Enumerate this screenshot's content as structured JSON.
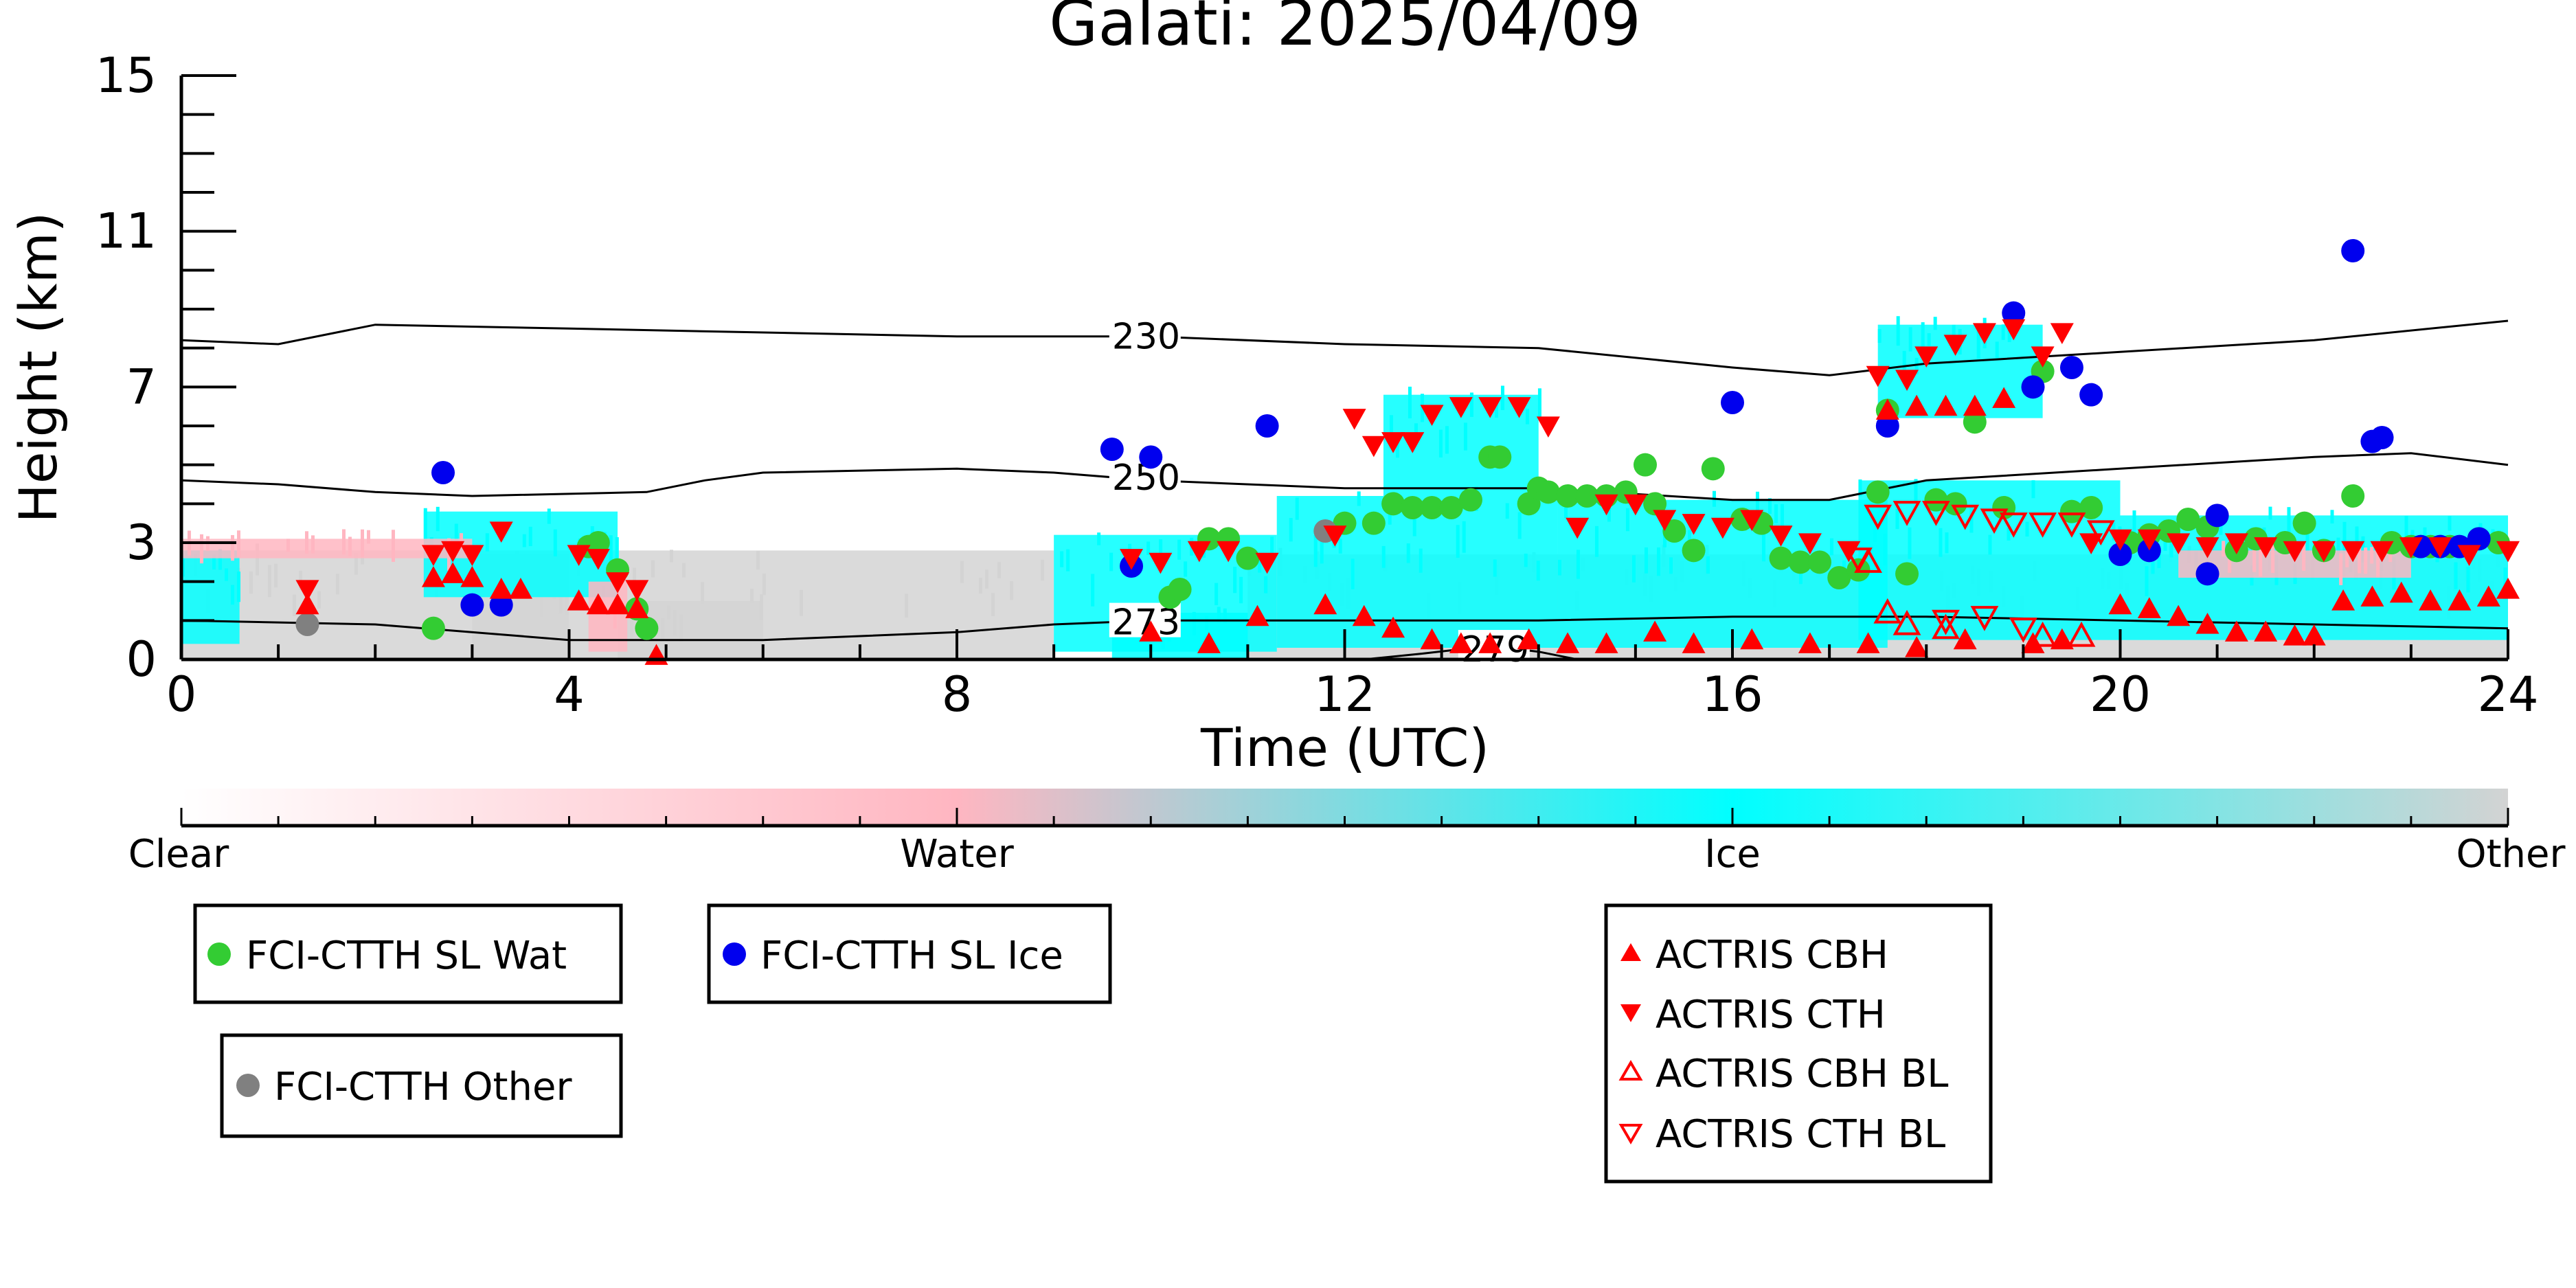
{
  "chart_data": {
    "type": "scatter",
    "title": "Galati: 2025/04/09",
    "xlabel": "Time (UTC)",
    "ylabel": "Height (km)",
    "xlim": [
      0,
      24
    ],
    "ylim": [
      0,
      15
    ],
    "x_ticks": [
      0,
      4,
      8,
      12,
      16,
      20,
      24
    ],
    "y_ticks": [
      0,
      3,
      7,
      11,
      15
    ],
    "grid": false,
    "colorbar": {
      "labels": [
        "Clear",
        "Water",
        "Ice",
        "Other"
      ],
      "colors": [
        "#ffffff",
        "#ffb6c1",
        "#00ffff",
        "#d3d3d3"
      ]
    },
    "colors": {
      "wat": "#33cc33",
      "ice": "#0000ee",
      "other": "#808080",
      "actris": "#ff0000",
      "cloud_ice": "#00ffff",
      "cloud_other": "#d3d3d3",
      "cloud_water": "#ffb6c1"
    },
    "isotherms": [
      {
        "label": "230",
        "label_x": 9.6,
        "points": [
          [
            0,
            8.2
          ],
          [
            1,
            8.1
          ],
          [
            2,
            8.6
          ],
          [
            4,
            8.5
          ],
          [
            8,
            8.3
          ],
          [
            10,
            8.3
          ],
          [
            12,
            8.1
          ],
          [
            14,
            8.0
          ],
          [
            16,
            7.5
          ],
          [
            17,
            7.3
          ],
          [
            18,
            7.6
          ],
          [
            20,
            7.9
          ],
          [
            22,
            8.2
          ],
          [
            24,
            8.7
          ]
        ]
      },
      {
        "label": "250",
        "label_x": 9.6,
        "points": [
          [
            0,
            4.6
          ],
          [
            1,
            4.5
          ],
          [
            2,
            4.3
          ],
          [
            3,
            4.2
          ],
          [
            4.8,
            4.3
          ],
          [
            5.4,
            4.6
          ],
          [
            6,
            4.8
          ],
          [
            8,
            4.9
          ],
          [
            9,
            4.8
          ],
          [
            10,
            4.6
          ],
          [
            12,
            4.4
          ],
          [
            14,
            4.4
          ],
          [
            16,
            4.1
          ],
          [
            17,
            4.1
          ],
          [
            18,
            4.6
          ],
          [
            20,
            4.9
          ],
          [
            22,
            5.2
          ],
          [
            23,
            5.3
          ],
          [
            24,
            5.0
          ]
        ]
      },
      {
        "label": "273",
        "label_x": 9.6,
        "points": [
          [
            0,
            1.0
          ],
          [
            2,
            0.9
          ],
          [
            4,
            0.5
          ],
          [
            6,
            0.5
          ],
          [
            8,
            0.7
          ],
          [
            9,
            0.9
          ],
          [
            10,
            1.0
          ],
          [
            12,
            1.0
          ],
          [
            14,
            1.0
          ],
          [
            16,
            1.1
          ],
          [
            18,
            1.1
          ],
          [
            20,
            1.0
          ],
          [
            22,
            0.9
          ],
          [
            24,
            0.8
          ]
        ]
      },
      {
        "label": "279",
        "label_x": 13.2,
        "points": [
          [
            12.2,
            0.0
          ],
          [
            12.8,
            0.15
          ],
          [
            13.5,
            0.35
          ],
          [
            14.0,
            0.2
          ],
          [
            14.4,
            0.0
          ]
        ]
      }
    ],
    "cloud_mask": {
      "other": [
        [
          0,
          0,
          9,
          2.8
        ],
        [
          11,
          0,
          24,
          2.7
        ],
        [
          4.5,
          0,
          6,
          1.5
        ],
        [
          3,
          0,
          4,
          2.7
        ]
      ],
      "ice": [
        [
          0,
          0.4,
          0.6,
          2.8
        ],
        [
          2.5,
          1.6,
          4.5,
          3.8
        ],
        [
          9,
          0.2,
          11.3,
          3.2
        ],
        [
          11.3,
          0.3,
          14.2,
          4.2
        ],
        [
          12.4,
          4.2,
          14.0,
          6.8
        ],
        [
          14.2,
          0.3,
          17.6,
          4.1
        ],
        [
          17.3,
          0.5,
          20,
          4.6
        ],
        [
          17.5,
          6.2,
          19.2,
          8.6
        ],
        [
          20,
          0.5,
          24,
          3.7
        ],
        [
          9.6,
          0.0,
          11,
          1.2
        ]
      ],
      "water": [
        [
          0,
          2.6,
          3,
          3.1
        ],
        [
          4.2,
          0.2,
          4.6,
          2.0
        ],
        [
          20.6,
          2.1,
          23,
          2.8
        ]
      ]
    },
    "series": [
      {
        "name": "FCI-CTTH SL Wat",
        "kind": "wat",
        "marker": "circle-filled",
        "points": [
          [
            2.6,
            0.8
          ],
          [
            4.2,
            2.9
          ],
          [
            4.3,
            3.0
          ],
          [
            4.5,
            2.3
          ],
          [
            4.7,
            1.3
          ],
          [
            4.8,
            0.8
          ],
          [
            10.2,
            1.6
          ],
          [
            10.3,
            1.8
          ],
          [
            10.6,
            3.1
          ],
          [
            10.8,
            3.1
          ],
          [
            11.0,
            2.6
          ],
          [
            12.0,
            3.5
          ],
          [
            12.3,
            3.5
          ],
          [
            12.5,
            4.0
          ],
          [
            12.7,
            3.9
          ],
          [
            12.9,
            3.9
          ],
          [
            13.1,
            3.9
          ],
          [
            13.3,
            4.1
          ],
          [
            13.5,
            5.2
          ],
          [
            13.6,
            5.2
          ],
          [
            13.9,
            4.0
          ],
          [
            14.0,
            4.4
          ],
          [
            14.1,
            4.3
          ],
          [
            14.3,
            4.2
          ],
          [
            14.5,
            4.2
          ],
          [
            14.7,
            4.2
          ],
          [
            14.9,
            4.3
          ],
          [
            15.1,
            5.0
          ],
          [
            15.2,
            4.0
          ],
          [
            15.4,
            3.3
          ],
          [
            15.6,
            2.8
          ],
          [
            15.8,
            4.9
          ],
          [
            16.1,
            3.6
          ],
          [
            16.3,
            3.5
          ],
          [
            16.5,
            2.6
          ],
          [
            16.7,
            2.5
          ],
          [
            16.9,
            2.5
          ],
          [
            17.1,
            2.1
          ],
          [
            17.3,
            2.3
          ],
          [
            17.5,
            4.3
          ],
          [
            17.6,
            6.4
          ],
          [
            17.8,
            2.2
          ],
          [
            18.1,
            4.1
          ],
          [
            18.3,
            4.0
          ],
          [
            18.5,
            6.1
          ],
          [
            18.8,
            3.9
          ],
          [
            19.2,
            7.4
          ],
          [
            19.5,
            3.8
          ],
          [
            19.7,
            3.9
          ],
          [
            20.1,
            3.0
          ],
          [
            20.3,
            3.2
          ],
          [
            20.5,
            3.3
          ],
          [
            20.7,
            3.6
          ],
          [
            20.9,
            3.4
          ],
          [
            21.2,
            2.8
          ],
          [
            21.4,
            3.1
          ],
          [
            21.7,
            3.0
          ],
          [
            21.9,
            3.5
          ],
          [
            22.1,
            2.8
          ],
          [
            22.4,
            4.2
          ],
          [
            22.8,
            3.0
          ],
          [
            23.0,
            2.9
          ],
          [
            23.2,
            2.9
          ],
          [
            23.4,
            2.9
          ],
          [
            23.7,
            3.1
          ],
          [
            23.9,
            3.0
          ]
        ]
      },
      {
        "name": "FCI-CTTH SL Ice",
        "kind": "ice",
        "marker": "circle-filled",
        "points": [
          [
            2.7,
            4.8
          ],
          [
            3.0,
            1.4
          ],
          [
            3.3,
            1.4
          ],
          [
            9.6,
            5.4
          ],
          [
            9.8,
            2.4
          ],
          [
            10.0,
            5.2
          ],
          [
            11.2,
            6.0
          ],
          [
            16.0,
            6.6
          ],
          [
            17.6,
            6.0
          ],
          [
            18.9,
            8.9
          ],
          [
            19.1,
            7.0
          ],
          [
            19.5,
            7.5
          ],
          [
            19.7,
            6.8
          ],
          [
            20.0,
            2.7
          ],
          [
            20.3,
            2.8
          ],
          [
            20.9,
            2.2
          ],
          [
            21.0,
            3.7
          ],
          [
            22.4,
            10.5
          ],
          [
            22.6,
            5.6
          ],
          [
            22.7,
            5.7
          ],
          [
            23.1,
            2.9
          ],
          [
            23.3,
            2.9
          ],
          [
            23.5,
            2.9
          ],
          [
            23.7,
            3.1
          ]
        ]
      },
      {
        "name": "FCI-CTTH Other",
        "kind": "other",
        "marker": "circle-filled",
        "points": [
          [
            1.3,
            0.9
          ],
          [
            11.8,
            3.3
          ]
        ]
      },
      {
        "name": "ACTRIS CBH",
        "kind": "actris",
        "marker": "triangle-up-filled",
        "points": [
          [
            1.3,
            1.4
          ],
          [
            2.6,
            2.1
          ],
          [
            2.8,
            2.2
          ],
          [
            3.0,
            2.1
          ],
          [
            3.3,
            1.8
          ],
          [
            3.5,
            1.8
          ],
          [
            4.1,
            1.5
          ],
          [
            4.3,
            1.4
          ],
          [
            4.5,
            1.4
          ],
          [
            4.7,
            1.3
          ],
          [
            4.9,
            0.1
          ],
          [
            10.0,
            0.7
          ],
          [
            10.6,
            0.4
          ],
          [
            11.1,
            1.1
          ],
          [
            11.8,
            1.4
          ],
          [
            12.2,
            1.1
          ],
          [
            12.5,
            0.8
          ],
          [
            12.9,
            0.5
          ],
          [
            13.2,
            0.4
          ],
          [
            13.5,
            0.4
          ],
          [
            13.9,
            0.5
          ],
          [
            14.3,
            0.4
          ],
          [
            14.7,
            0.4
          ],
          [
            15.2,
            0.7
          ],
          [
            15.6,
            0.4
          ],
          [
            16.2,
            0.5
          ],
          [
            16.8,
            0.4
          ],
          [
            17.4,
            0.4
          ],
          [
            17.9,
            0.3
          ],
          [
            18.4,
            0.5
          ],
          [
            19.1,
            0.4
          ],
          [
            19.4,
            0.5
          ],
          [
            20.0,
            1.4
          ],
          [
            20.3,
            1.3
          ],
          [
            20.6,
            1.1
          ],
          [
            20.9,
            0.9
          ],
          [
            21.2,
            0.7
          ],
          [
            21.5,
            0.7
          ],
          [
            21.8,
            0.6
          ],
          [
            22.0,
            0.6
          ],
          [
            22.3,
            1.5
          ],
          [
            22.6,
            1.6
          ],
          [
            22.9,
            1.7
          ],
          [
            23.2,
            1.5
          ],
          [
            23.5,
            1.5
          ],
          [
            23.8,
            1.6
          ],
          [
            24.0,
            1.8
          ],
          [
            17.6,
            6.4
          ],
          [
            17.9,
            6.5
          ],
          [
            18.2,
            6.5
          ],
          [
            18.5,
            6.5
          ],
          [
            18.8,
            6.7
          ]
        ]
      },
      {
        "name": "ACTRIS CTH",
        "kind": "actris",
        "marker": "triangle-down-filled",
        "points": [
          [
            1.3,
            1.8
          ],
          [
            2.6,
            2.7
          ],
          [
            2.8,
            2.8
          ],
          [
            3.0,
            2.7
          ],
          [
            3.3,
            3.3
          ],
          [
            4.1,
            2.7
          ],
          [
            4.3,
            2.6
          ],
          [
            4.5,
            2.0
          ],
          [
            4.7,
            1.8
          ],
          [
            9.8,
            2.6
          ],
          [
            10.1,
            2.5
          ],
          [
            10.5,
            2.8
          ],
          [
            10.8,
            2.8
          ],
          [
            11.2,
            2.5
          ],
          [
            11.9,
            3.2
          ],
          [
            12.1,
            6.2
          ],
          [
            12.3,
            5.5
          ],
          [
            12.5,
            5.6
          ],
          [
            12.7,
            5.6
          ],
          [
            12.9,
            6.3
          ],
          [
            13.2,
            6.5
          ],
          [
            13.5,
            6.5
          ],
          [
            13.8,
            6.5
          ],
          [
            14.1,
            6.0
          ],
          [
            14.4,
            3.4
          ],
          [
            14.7,
            4.0
          ],
          [
            15.0,
            4.0
          ],
          [
            15.3,
            3.6
          ],
          [
            15.6,
            3.5
          ],
          [
            15.9,
            3.4
          ],
          [
            16.2,
            3.6
          ],
          [
            16.5,
            3.2
          ],
          [
            16.8,
            3.0
          ],
          [
            17.2,
            2.8
          ],
          [
            17.5,
            7.3
          ],
          [
            17.8,
            7.2
          ],
          [
            18.0,
            7.8
          ],
          [
            18.3,
            8.1
          ],
          [
            18.6,
            8.4
          ],
          [
            18.9,
            8.5
          ],
          [
            19.2,
            7.8
          ],
          [
            19.4,
            8.4
          ],
          [
            19.7,
            3.0
          ],
          [
            20.0,
            3.1
          ],
          [
            20.3,
            3.1
          ],
          [
            20.6,
            3.0
          ],
          [
            20.9,
            2.9
          ],
          [
            21.2,
            3.0
          ],
          [
            21.5,
            2.9
          ],
          [
            21.8,
            2.8
          ],
          [
            22.1,
            2.8
          ],
          [
            22.4,
            2.8
          ],
          [
            22.7,
            2.8
          ],
          [
            23.0,
            2.9
          ],
          [
            23.3,
            2.9
          ],
          [
            23.6,
            2.7
          ],
          [
            24.0,
            2.8
          ]
        ]
      },
      {
        "name": "ACTRIS CBH BL",
        "kind": "actris",
        "marker": "triangle-up-open",
        "points": [
          [
            17.4,
            2.5
          ],
          [
            17.6,
            1.2
          ],
          [
            17.8,
            0.9
          ],
          [
            18.2,
            0.8
          ],
          [
            19.2,
            0.6
          ],
          [
            19.6,
            0.6
          ]
        ]
      },
      {
        "name": "ACTRIS CTH BL",
        "kind": "actris",
        "marker": "triangle-down-open",
        "points": [
          [
            17.3,
            2.6
          ],
          [
            17.5,
            3.7
          ],
          [
            17.8,
            3.8
          ],
          [
            18.1,
            3.8
          ],
          [
            18.4,
            3.7
          ],
          [
            18.7,
            3.6
          ],
          [
            18.9,
            3.5
          ],
          [
            19.2,
            3.5
          ],
          [
            19.5,
            3.5
          ],
          [
            19.8,
            3.3
          ],
          [
            18.2,
            1.0
          ],
          [
            18.6,
            1.1
          ],
          [
            19.0,
            0.8
          ]
        ]
      }
    ]
  }
}
